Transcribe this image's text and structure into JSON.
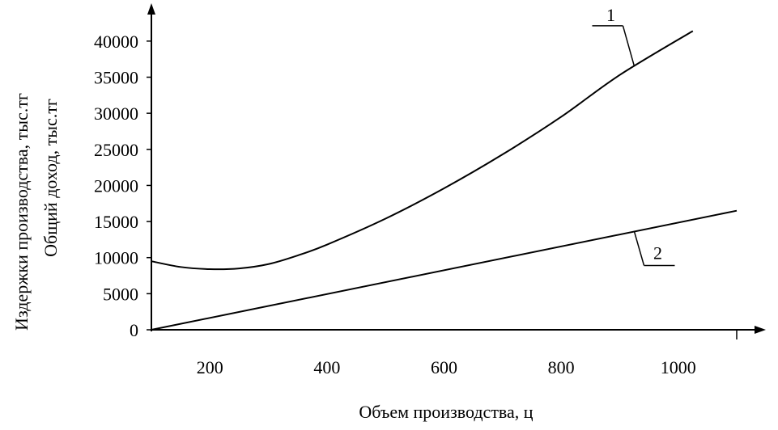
{
  "chart_data": {
    "type": "line",
    "xlabel": "Объем производства, ц",
    "ylabel": [
      "Издержки производства, тыс.тг",
      "Общий доход, тыс.тг"
    ],
    "xlim": [
      100,
      1100
    ],
    "ylim": [
      0,
      42000
    ],
    "x_ticks": [
      "200",
      "400",
      "600",
      "800",
      "1000"
    ],
    "y_ticks": [
      "0",
      "5000",
      "10000",
      "15000",
      "20000",
      "25000",
      "30000",
      "35000",
      "40000"
    ],
    "grid": false,
    "series": [
      {
        "name": "1",
        "x": [
          100,
          150,
          200,
          250,
          300,
          350,
          400,
          500,
          600,
          700,
          800,
          900,
          1025
        ],
        "y": [
          9500,
          8700,
          8400,
          8500,
          9100,
          10300,
          11800,
          15400,
          19600,
          24300,
          29500,
          35300,
          41400
        ]
      },
      {
        "name": "2",
        "x": [
          100,
          1100
        ],
        "y": [
          0,
          16500
        ]
      }
    ],
    "callouts": [
      {
        "label": "1",
        "series": "1",
        "at_x": 925
      },
      {
        "label": "2",
        "series": "2",
        "at_x": 925
      }
    ]
  }
}
